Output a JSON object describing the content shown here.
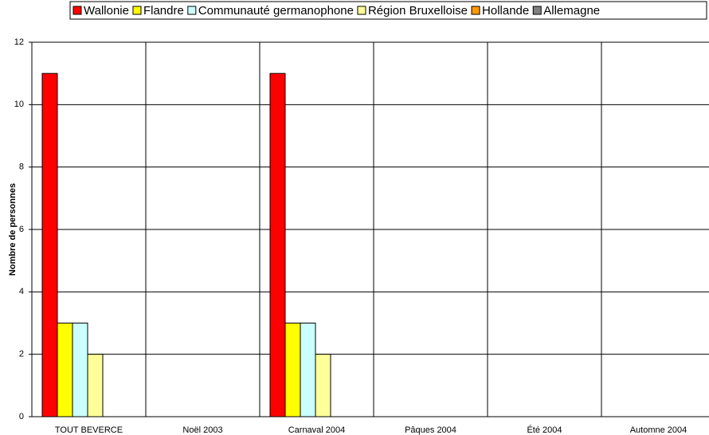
{
  "chart_data": {
    "type": "bar",
    "y_label": "Nombre de personnes",
    "categories": [
      "TOUT BEVERCE",
      "Noël 2003",
      "Carnaval 2004",
      "Pâques 2004",
      "Été 2004",
      "Automne 2004"
    ],
    "series": [
      {
        "name": "Wallonie",
        "color": "#ff0000",
        "values": [
          11,
          0,
          11,
          0,
          0,
          0
        ]
      },
      {
        "name": "Flandre",
        "color": "#ffff00",
        "values": [
          3,
          0,
          3,
          0,
          0,
          0
        ]
      },
      {
        "name": "Communauté germanophone",
        "color": "#ccffff",
        "values": [
          3,
          0,
          3,
          0,
          0,
          0
        ]
      },
      {
        "name": "Région Bruxelloise",
        "color": "#ffff99",
        "values": [
          2,
          0,
          2,
          0,
          0,
          0
        ]
      },
      {
        "name": "Hollande",
        "color": "#ff9900",
        "values": [
          0,
          0,
          0,
          0,
          0,
          0
        ]
      },
      {
        "name": "Allemagne",
        "color": "#808080",
        "values": [
          0,
          0,
          0,
          0,
          0,
          0
        ]
      }
    ],
    "ylim": [
      0,
      12
    ],
    "yticks": [
      0,
      2,
      4,
      6,
      8,
      10,
      12
    ],
    "grid": true,
    "legend": "top"
  }
}
